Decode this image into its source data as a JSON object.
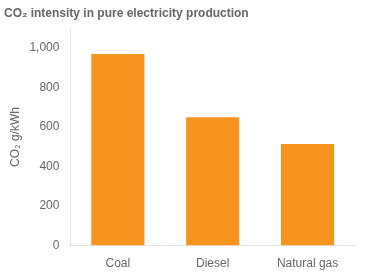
{
  "chart_data": {
    "type": "bar",
    "title": "CO₂ intensity in pure electricity production",
    "ylabel": "CO₂ g/kWh",
    "categories": [
      "Coal",
      "Diesel",
      "Natural gas"
    ],
    "values": [
      970,
      650,
      515
    ],
    "color": "#F7941D",
    "ylim": [
      0,
      1100
    ],
    "yticks": [
      0,
      200,
      400,
      600,
      800,
      {
        "value": 1000,
        "label": "1,000"
      }
    ],
    "grid": false
  }
}
